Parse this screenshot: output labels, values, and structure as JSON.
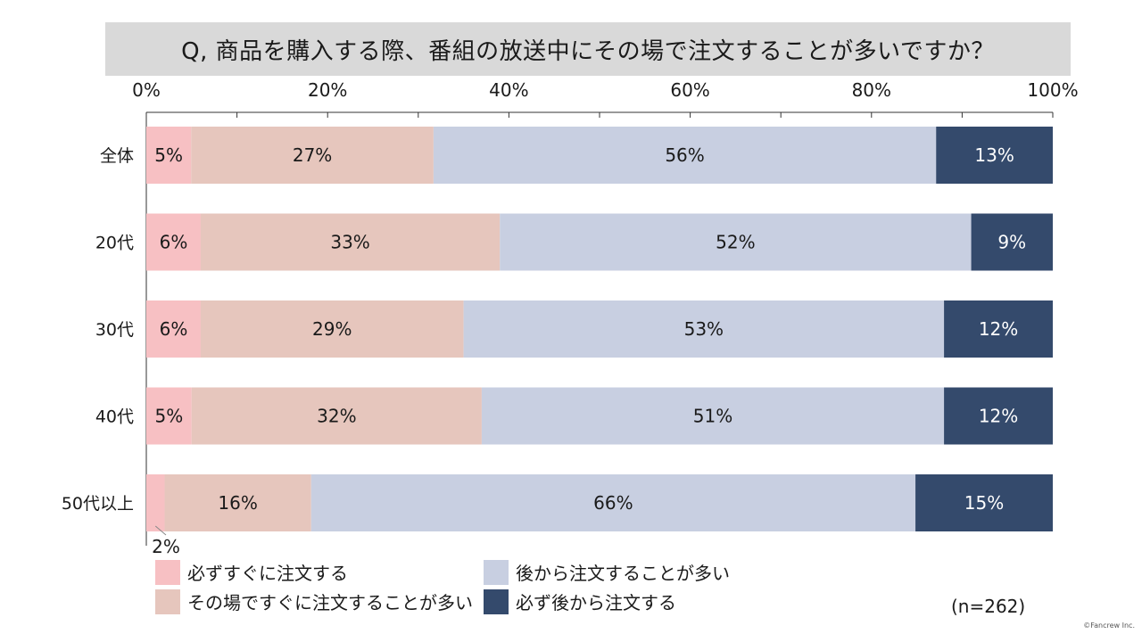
{
  "chart_data": {
    "type": "bar",
    "orientation": "horizontal",
    "stacked": true,
    "title": "Q, 商品を購入する際、番組の放送中にその場で注文することが多いですか？",
    "categories": [
      "全体",
      "20代",
      "30代",
      "40代",
      "50代以上"
    ],
    "x_ticks": [
      "0%",
      "20%",
      "40%",
      "60%",
      "80%",
      "100%"
    ],
    "xlim": [
      0,
      100
    ],
    "series": [
      {
        "name": "必ずすぐに注文する",
        "color": "#f7c0c3",
        "values": [
          5,
          6,
          6,
          5,
          2
        ],
        "labels": [
          "5%",
          "6%",
          "6%",
          "5%",
          "2%"
        ]
      },
      {
        "name": "その場ですぐに注文することが多い",
        "color": "#e6c6bd",
        "values": [
          27,
          33,
          29,
          32,
          16
        ],
        "labels": [
          "27%",
          "33%",
          "29%",
          "32%",
          "16%"
        ]
      },
      {
        "name": "後から注文することが多い",
        "color": "#c8cfe1",
        "values": [
          56,
          52,
          53,
          51,
          66
        ],
        "labels": [
          "56%",
          "52%",
          "53%",
          "51%",
          "66%"
        ]
      },
      {
        "name": "必ず後から注文する",
        "color": "#344a6c",
        "values": [
          13,
          9,
          12,
          12,
          15
        ],
        "labels": [
          "13%",
          "9%",
          "12%",
          "12%",
          "15%"
        ]
      }
    ],
    "legend_position": "bottom",
    "grid": false
  },
  "sample_size": "(n=262)",
  "copyright": "©Fancrew Inc."
}
